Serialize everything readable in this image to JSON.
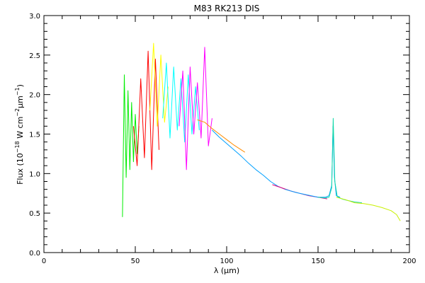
{
  "chart_data": {
    "type": "line",
    "title": "M83 RK213 DIS",
    "xlabel": "λ (μm)",
    "ylabel_parts": {
      "prefix": "Flux (10",
      "exp1": "−18",
      "mid1": " W cm",
      "exp2": "−2",
      "mid2": "μm",
      "exp3": "−1",
      "suffix": ")"
    },
    "xlim": [
      0,
      200
    ],
    "ylim": [
      0.0,
      3.0
    ],
    "x_ticks": [
      0,
      50,
      100,
      150,
      200
    ],
    "x_tick_labels": [
      "0",
      "50",
      "100",
      "150",
      "200"
    ],
    "y_ticks": [
      0.0,
      0.5,
      1.0,
      1.5,
      2.0,
      2.5,
      3.0
    ],
    "y_tick_labels": [
      "0.0",
      "0.5",
      "1.0",
      "1.5",
      "2.0",
      "2.5",
      "3.0"
    ],
    "grid": false,
    "series": [
      {
        "color": "#00ee00",
        "x": [
          43.0,
          44.0,
          45.0,
          46.0,
          47.0,
          48.0,
          49.0,
          50.0,
          51.0,
          52.0
        ],
        "y": [
          0.45,
          2.25,
          0.95,
          2.05,
          1.05,
          1.9,
          1.15,
          1.75,
          1.25,
          1.6
        ]
      },
      {
        "color": "#ff0000",
        "x": [
          49.0,
          51.0,
          53.0,
          55.0,
          57.0,
          59.0,
          61.0,
          63.0
        ],
        "y": [
          1.6,
          1.1,
          2.2,
          1.2,
          2.55,
          1.05,
          2.45,
          1.3
        ]
      },
      {
        "color": "#ffff00",
        "x": [
          58.0,
          60.0,
          62.0,
          64.0,
          66.0,
          68.0
        ],
        "y": [
          1.8,
          2.65,
          1.6,
          2.5,
          1.65,
          2.1
        ]
      },
      {
        "color": "#00ffff",
        "x": [
          65.0,
          67.0,
          69.0,
          71.0,
          73.0,
          75.0,
          77.0,
          79.0,
          81.0,
          83.0,
          85.0
        ],
        "y": [
          1.7,
          2.4,
          1.45,
          2.35,
          1.55,
          2.2,
          1.4,
          2.25,
          1.5,
          2.1,
          1.55
        ]
      },
      {
        "color": "#ff00ff",
        "x": [
          74.0,
          76.0,
          78.0,
          80.0,
          82.0,
          84.0,
          86.0,
          88.0,
          90.0,
          92.0
        ],
        "y": [
          1.6,
          2.3,
          1.05,
          2.35,
          1.5,
          2.15,
          1.45,
          2.6,
          1.35,
          1.7
        ]
      },
      {
        "color": "#ff8c00",
        "x": [
          84.0,
          88.0,
          92.0,
          96.0,
          100.0,
          104.0,
          108.0,
          110.0
        ],
        "y": [
          1.68,
          1.65,
          1.57,
          1.5,
          1.43,
          1.36,
          1.3,
          1.27
        ]
      },
      {
        "color": "#00a0ff",
        "x": [
          92.0,
          96.0,
          100.0,
          104.0,
          108.0,
          112.0,
          116.0,
          120.0,
          124.0,
          128.0,
          132.0
        ],
        "y": [
          1.55,
          1.46,
          1.38,
          1.3,
          1.22,
          1.13,
          1.05,
          0.98,
          0.9,
          0.84,
          0.8
        ]
      },
      {
        "color": "#e0007f",
        "x": [
          125.0,
          130.0,
          135.0,
          140.0,
          145.0,
          150.0,
          155.0
        ],
        "y": [
          0.86,
          0.82,
          0.78,
          0.75,
          0.72,
          0.7,
          0.68
        ]
      },
      {
        "color": "#00a0ff",
        "x": [
          132.0,
          138.0,
          144.0,
          150.0,
          154.0,
          156.0,
          157.5,
          158.2,
          159.0,
          160.0,
          162.0
        ],
        "y": [
          0.8,
          0.76,
          0.73,
          0.7,
          0.7,
          0.72,
          0.85,
          1.6,
          0.95,
          0.72,
          0.7
        ]
      },
      {
        "color": "#10d8a8",
        "x": [
          150.0,
          154.0,
          156.0,
          157.5,
          158.3,
          159.2,
          160.5,
          163.0,
          166.0,
          170.0,
          174.0
        ],
        "y": [
          0.7,
          0.69,
          0.7,
          0.82,
          1.7,
          0.9,
          0.71,
          0.68,
          0.66,
          0.64,
          0.63
        ]
      },
      {
        "color": "#c8f000",
        "x": [
          160.0,
          165.0,
          170.0,
          175.0,
          180.0,
          185.0,
          190.0,
          193.0,
          195.0
        ],
        "y": [
          0.7,
          0.67,
          0.63,
          0.62,
          0.6,
          0.57,
          0.53,
          0.48,
          0.4
        ]
      }
    ]
  }
}
